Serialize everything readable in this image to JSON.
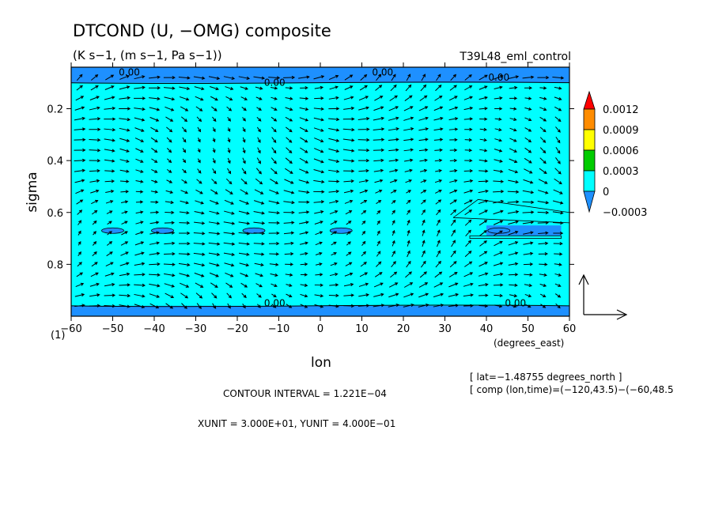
{
  "header": {
    "title": "DTCOND (U, −OMG) composite",
    "subtitle": "(K s−1, (m s−1, Pa s−1))",
    "run_name": "T39L48_eml_control"
  },
  "footer": {
    "lat_note": "[ lat=−1.48755 degrees_north ]",
    "comp_note": "[ comp (lon,time)=(−120,43.5)−(−60,48.5",
    "contour_interval": "CONTOUR INTERVAL = 1.221E−04",
    "units_note": "XUNIT = 3.000E+01, YUNIT = 4.000E−01"
  },
  "colors": {
    "background_fill": "#00ffff",
    "negative_fill": "#1e90ff",
    "scale_colors": [
      "#ff0000",
      "#ff8c00",
      "#ffff00",
      "#00cc00",
      "#00ffff",
      "#1e90ff"
    ]
  },
  "chart_data": {
    "type": "heatmap",
    "subtype": "filled contour with vector overlay",
    "xlabel": "lon",
    "xunit": "(degrees_east)",
    "ylabel": "sigma",
    "corner_label": "(1)",
    "x_ticks": [
      "−60",
      "−50",
      "−40",
      "−30",
      "−20",
      "−10",
      "0",
      "10",
      "20",
      "30",
      "40",
      "50",
      "60"
    ],
    "y_ticks": [
      "0.2",
      "0.4",
      "0.6",
      "0.8"
    ],
    "xlim": [
      -60,
      60
    ],
    "ylim": [
      1.0,
      0.04
    ],
    "y_inverted": true,
    "contour_labels": [
      "0.00",
      "0.00",
      "0.00",
      "0.00",
      "0.00",
      "0.00"
    ],
    "color_scale": {
      "labels": [
        "0.0012",
        "0.0009",
        "0.0006",
        "0.0003",
        "0",
        "−0.0003"
      ],
      "levels": [
        0.0012,
        0.0009,
        0.0006,
        0.0003,
        0,
        -0.0003
      ]
    },
    "regions": [
      {
        "name": "upper-negative-band",
        "fill": "negative",
        "sigma_range": [
          0.04,
          0.1
        ]
      },
      {
        "name": "lower-negative-band",
        "fill": "negative",
        "sigma_range": [
          0.96,
          1.0
        ]
      },
      {
        "name": "mid-negative-patch",
        "fill": "negative",
        "lon_range": [
          40,
          58
        ],
        "sigma_range": [
          0.65,
          0.69
        ]
      }
    ]
  }
}
